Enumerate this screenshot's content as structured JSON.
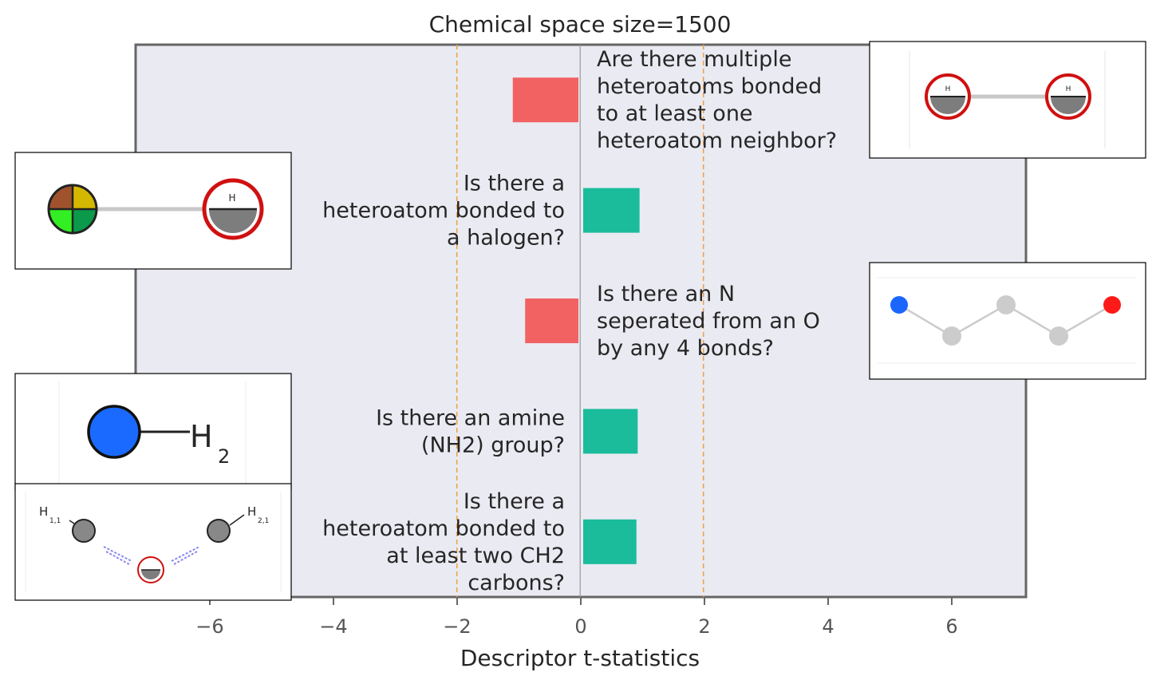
{
  "chart_data": {
    "type": "bar",
    "orientation": "horizontal",
    "title": "Chemical space size=1500",
    "xlabel": "Descriptor t-statistics",
    "ylabel": "",
    "xlim": [
      -7.2,
      7.2
    ],
    "xticks": [
      -6,
      -4,
      -2,
      0,
      2,
      4,
      6
    ],
    "xtick_labels": [
      "−6",
      "−4",
      "−2",
      "0",
      "2",
      "4",
      "6"
    ],
    "significance_lines": [
      -2,
      2
    ],
    "grid": false,
    "bars": [
      {
        "label": [
          "Are there multiple",
          "heteroatoms bonded",
          "to at least one",
          "heteroatom neighbor?"
        ],
        "value": -1.1
      },
      {
        "label": [
          "Is there a",
          "heteroatom bonded to",
          "a halogen?"
        ],
        "value": 0.95
      },
      {
        "label": [
          "Is there an N",
          "seperated from an O",
          "by any 4 bonds?"
        ],
        "value": -0.9
      },
      {
        "label": [
          "Is there an amine",
          "(NH2) group?"
        ],
        "value": 0.92
      },
      {
        "label": [
          "Is there a",
          "heteroatom bonded to",
          "at least two CH2",
          "carbons?"
        ],
        "value": 0.9
      }
    ],
    "colors": {
      "negative": "#f26262",
      "positive": "#1abc9c",
      "plot_background": "#eaeaf2",
      "threshold_line": "#f0a040",
      "zero_line": "#999999",
      "frame": "#666666"
    },
    "insets": {
      "nh2_text": "H",
      "nh2_sub": "2",
      "h_label": "H",
      "h_label_1": "H",
      "h_sub_1": "1,1",
      "h_label_2": "H",
      "h_sub_2": "2,1"
    }
  }
}
